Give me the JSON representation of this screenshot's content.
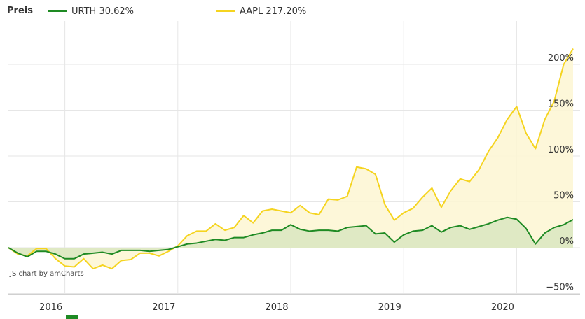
{
  "legend": {
    "title": "Preis",
    "items": [
      {
        "name": "URTH",
        "value_label": "30.62%",
        "color": "#1e8a23"
      },
      {
        "name": "AAPL",
        "value_label": "217.20%",
        "color": "#f5d420"
      }
    ]
  },
  "credit": "JS chart by amCharts",
  "chart_data": {
    "type": "line",
    "ylim": [
      -50,
      225
    ],
    "y_ticks": [
      -50,
      0,
      50,
      100,
      150,
      200
    ],
    "y_tick_labels": [
      "−50%",
      "0%",
      "50%",
      "100%",
      "150%",
      "200%"
    ],
    "x_tick_labels": [
      "2016",
      "2017",
      "2018",
      "2019",
      "2020"
    ],
    "x_range": [
      "2015-07",
      "2020-07"
    ],
    "grid": true,
    "legend_position": "top",
    "series": [
      {
        "name": "AAPL",
        "color": "#f5d420",
        "fill": "#fdf6d2",
        "dates": [
          "2015-07",
          "2015-08",
          "2015-09",
          "2015-10",
          "2015-11",
          "2015-12",
          "2016-01",
          "2016-02",
          "2016-03",
          "2016-04",
          "2016-05",
          "2016-06",
          "2016-07",
          "2016-08",
          "2016-09",
          "2016-10",
          "2016-11",
          "2016-12",
          "2017-01",
          "2017-02",
          "2017-03",
          "2017-04",
          "2017-05",
          "2017-06",
          "2017-07",
          "2017-08",
          "2017-09",
          "2017-10",
          "2017-11",
          "2017-12",
          "2018-01",
          "2018-02",
          "2018-03",
          "2018-04",
          "2018-05",
          "2018-06",
          "2018-07",
          "2018-08",
          "2018-09",
          "2018-10",
          "2018-11",
          "2018-12",
          "2019-01",
          "2019-02",
          "2019-03",
          "2019-04",
          "2019-05",
          "2019-06",
          "2019-07",
          "2019-08",
          "2019-09",
          "2019-10",
          "2019-11",
          "2019-12",
          "2020-01",
          "2020-02",
          "2020-03",
          "2020-04",
          "2020-05",
          "2020-06",
          "2020-07"
        ],
        "values": [
          0,
          -7,
          -9,
          -1,
          -1,
          -12,
          -20,
          -21,
          -12,
          -23,
          -19,
          -23,
          -14,
          -13,
          -6,
          -6,
          -9,
          -4,
          2,
          13,
          18,
          18,
          26,
          19,
          22,
          35,
          27,
          40,
          42,
          40,
          38,
          46,
          38,
          36,
          53,
          52,
          56,
          88,
          86,
          80,
          47,
          30,
          38,
          43,
          55,
          65,
          44,
          62,
          75,
          72,
          85,
          105,
          120,
          140,
          154,
          125,
          108,
          140,
          160,
          200,
          217.2
        ]
      },
      {
        "name": "URTH",
        "color": "#1e8a23",
        "fill": "#d9e6c0",
        "dates": [
          "2015-07",
          "2015-08",
          "2015-09",
          "2015-10",
          "2015-11",
          "2015-12",
          "2016-01",
          "2016-02",
          "2016-03",
          "2016-04",
          "2016-05",
          "2016-06",
          "2016-07",
          "2016-08",
          "2016-09",
          "2016-10",
          "2016-11",
          "2016-12",
          "2017-01",
          "2017-02",
          "2017-03",
          "2017-04",
          "2017-05",
          "2017-06",
          "2017-07",
          "2017-08",
          "2017-09",
          "2017-10",
          "2017-11",
          "2017-12",
          "2018-01",
          "2018-02",
          "2018-03",
          "2018-04",
          "2018-05",
          "2018-06",
          "2018-07",
          "2018-08",
          "2018-09",
          "2018-10",
          "2018-11",
          "2018-12",
          "2019-01",
          "2019-02",
          "2019-03",
          "2019-04",
          "2019-05",
          "2019-06",
          "2019-07",
          "2019-08",
          "2019-09",
          "2019-10",
          "2019-11",
          "2019-12",
          "2020-01",
          "2020-02",
          "2020-03",
          "2020-04",
          "2020-05",
          "2020-06",
          "2020-07"
        ],
        "values": [
          0,
          -6,
          -10,
          -4,
          -4,
          -7,
          -12,
          -12,
          -7,
          -6,
          -5,
          -7,
          -3,
          -3,
          -3,
          -4,
          -3,
          -2,
          1,
          4,
          5,
          7,
          9,
          8,
          11,
          11,
          14,
          16,
          19,
          19,
          25,
          20,
          18,
          19,
          19,
          18,
          22,
          23,
          24,
          15,
          16,
          6,
          14,
          18,
          19,
          24,
          17,
          22,
          24,
          20,
          23,
          26,
          30,
          33,
          31,
          21,
          4,
          16,
          22,
          25,
          30.62
        ]
      }
    ]
  }
}
